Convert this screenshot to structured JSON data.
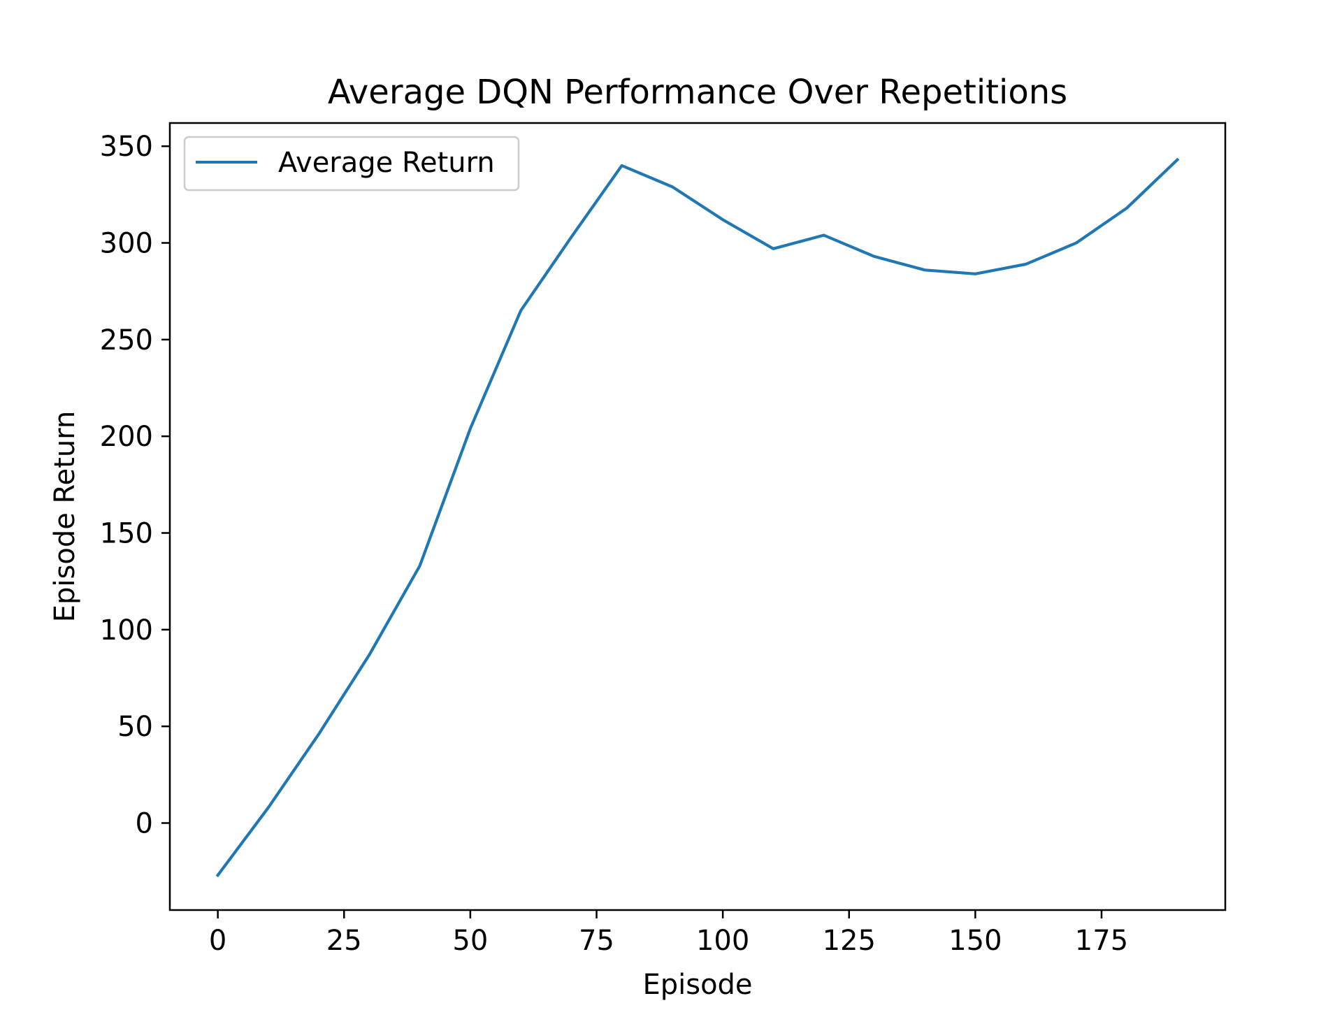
{
  "chart_data": {
    "type": "line",
    "title": "Average DQN Performance Over Repetitions",
    "xlabel": "Episode",
    "ylabel": "Episode Return",
    "xlim": [
      -9.5,
      199.5
    ],
    "ylim": [
      -45,
      362
    ],
    "xticks": [
      0,
      25,
      50,
      75,
      100,
      125,
      150,
      175
    ],
    "yticks": [
      0,
      50,
      100,
      150,
      200,
      250,
      300,
      350
    ],
    "grid": false,
    "legend": {
      "placement": "top-left",
      "entries": [
        "Average Return"
      ]
    },
    "series": [
      {
        "name": "Average Return",
        "color": "#1f77b4",
        "x": [
          0,
          10,
          20,
          30,
          40,
          50,
          60,
          70,
          80,
          90,
          100,
          110,
          120,
          130,
          140,
          150,
          160,
          170,
          180,
          190
        ],
        "y": [
          -27,
          8,
          46,
          87,
          133,
          204,
          265,
          303,
          340,
          329,
          312,
          297,
          304,
          293,
          286,
          284,
          289,
          300,
          318,
          343
        ]
      }
    ]
  }
}
